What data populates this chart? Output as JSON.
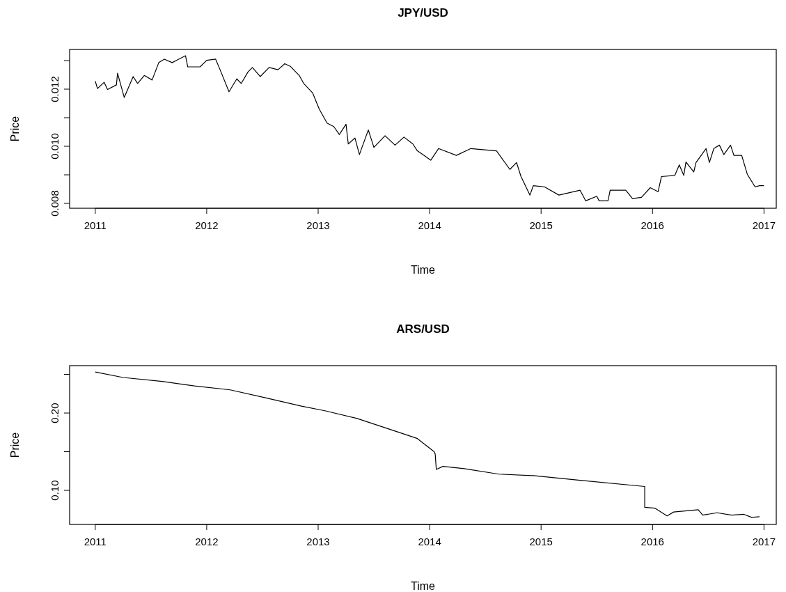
{
  "chart_data": [
    {
      "type": "line",
      "title": "JPY/USD",
      "xlabel": "Time",
      "ylabel": "Price",
      "xlim": [
        2010.77,
        2017.11
      ],
      "xticks": [
        2011,
        2012,
        2013,
        2014,
        2015,
        2016,
        2017
      ],
      "ylim": [
        0.00783,
        0.01339
      ],
      "yticks": [
        {
          "value": 0.008,
          "label": "0.008"
        },
        {
          "value": 0.009,
          "label": null
        },
        {
          "value": 0.01,
          "label": "0.010"
        },
        {
          "value": 0.011,
          "label": null
        },
        {
          "value": 0.012,
          "label": "0.012"
        },
        {
          "value": 0.013,
          "label": null
        }
      ],
      "grid": false,
      "line_style": "solid",
      "series": [
        {
          "color": "#000000",
          "x": [
            2011.0,
            2011.02,
            2011.08,
            2011.11,
            2011.19,
            2011.2,
            2011.26,
            2011.34,
            2011.38,
            2011.44,
            2011.51,
            2011.57,
            2011.62,
            2011.69,
            2011.81,
            2011.83,
            2011.94,
            2012.0,
            2012.08,
            2012.12,
            2012.2,
            2012.27,
            2012.31,
            2012.37,
            2012.41,
            2012.48,
            2012.56,
            2012.64,
            2012.7,
            2012.75,
            2012.83,
            2012.87,
            2012.95,
            2013.01,
            2013.08,
            2013.14,
            2013.19,
            2013.25,
            2013.27,
            2013.33,
            2013.37,
            2013.45,
            2013.5,
            2013.6,
            2013.69,
            2013.77,
            2013.85,
            2013.89,
            2013.94,
            2014.01,
            2014.08,
            2014.24,
            2014.37,
            2014.6,
            2014.72,
            2014.78,
            2014.82,
            2014.9,
            2014.93,
            2015.03,
            2015.16,
            2015.35,
            2015.4,
            2015.5,
            2015.52,
            2015.6,
            2015.62,
            2015.76,
            2015.82,
            2015.9,
            2015.98,
            2016.05,
            2016.08,
            2016.2,
            2016.24,
            2016.28,
            2016.3,
            2016.37,
            2016.39,
            2016.48,
            2016.51,
            2016.55,
            2016.6,
            2016.64,
            2016.7,
            2016.73,
            2016.8,
            2016.85,
            2016.92,
            2016.96,
            2017.0
          ],
          "values": [
            0.01228,
            0.01202,
            0.01224,
            0.01199,
            0.01215,
            0.01256,
            0.01171,
            0.01244,
            0.0122,
            0.01248,
            0.01232,
            0.01293,
            0.01305,
            0.01293,
            0.01317,
            0.01278,
            0.01278,
            0.01301,
            0.01305,
            0.01268,
            0.01191,
            0.01236,
            0.0122,
            0.0126,
            0.01276,
            0.01244,
            0.01276,
            0.01268,
            0.01289,
            0.0128,
            0.01248,
            0.0122,
            0.01187,
            0.0113,
            0.01081,
            0.01069,
            0.01041,
            0.01077,
            0.01008,
            0.01029,
            0.00971,
            0.01057,
            0.00996,
            0.01037,
            0.01004,
            0.01032,
            0.01008,
            0.00984,
            0.00971,
            0.00951,
            0.00992,
            0.00968,
            0.00992,
            0.00984,
            0.00919,
            0.00943,
            0.00894,
            0.00829,
            0.00862,
            0.00858,
            0.00829,
            0.00846,
            0.00809,
            0.00825,
            0.00809,
            0.00809,
            0.00846,
            0.00846,
            0.00817,
            0.00821,
            0.00855,
            0.00841,
            0.00894,
            0.00898,
            0.00935,
            0.00898,
            0.00945,
            0.0091,
            0.00943,
            0.00992,
            0.00943,
            0.00992,
            0.01004,
            0.00971,
            0.01004,
            0.00968,
            0.00968,
            0.00902,
            0.00858,
            0.00862,
            0.00862
          ]
        }
      ]
    },
    {
      "type": "line",
      "title": "ARS/USD",
      "xlabel": "Time",
      "ylabel": "Price",
      "xlim": [
        2010.77,
        2017.11
      ],
      "xticks": [
        2011,
        2012,
        2013,
        2014,
        2015,
        2016,
        2017
      ],
      "ylim": [
        0.0559,
        0.2613
      ],
      "yticks": [
        {
          "value": 0.1,
          "label": "0.10"
        },
        {
          "value": 0.15,
          "label": null
        },
        {
          "value": 0.2,
          "label": "0.20"
        },
        {
          "value": 0.25,
          "label": null
        }
      ],
      "grid": false,
      "line_style": "solid",
      "series": [
        {
          "color": "#000000",
          "x": [
            2011.0,
            2011.25,
            2011.6,
            2011.89,
            2012.21,
            2012.52,
            2012.85,
            2013.06,
            2013.35,
            2013.6,
            2013.83,
            2013.89,
            2014.04,
            2014.05,
            2014.06,
            2014.12,
            2014.31,
            2014.62,
            2014.93,
            2015.35,
            2015.93,
            2015.93,
            2016.02,
            2016.13,
            2016.19,
            2016.41,
            2016.45,
            2016.58,
            2016.71,
            2016.82,
            2016.89,
            2016.96
          ],
          "values": [
            0.253,
            0.246,
            0.241,
            0.235,
            0.23,
            0.22,
            0.209,
            0.203,
            0.193,
            0.181,
            0.17,
            0.167,
            0.15,
            0.147,
            0.127,
            0.131,
            0.128,
            0.121,
            0.119,
            0.113,
            0.105,
            0.078,
            0.077,
            0.067,
            0.072,
            0.075,
            0.068,
            0.071,
            0.068,
            0.069,
            0.065,
            0.066
          ]
        }
      ]
    }
  ]
}
